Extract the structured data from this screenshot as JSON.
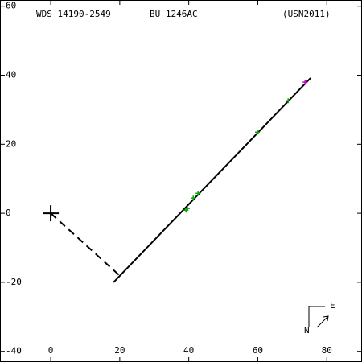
{
  "chart_data": {
    "type": "scatter",
    "title": "WDS 14190-2549",
    "subtitle": "BU 1246AC",
    "annotation": "(USN2011)",
    "compass": {
      "east": "E",
      "north": "N"
    },
    "xlim": [
      -14.7,
      90.2
    ],
    "ylim": [
      -43.1,
      61.8
    ],
    "xticks": [
      0,
      20,
      40,
      60,
      80
    ],
    "yticks": [
      -40,
      -20,
      0,
      20,
      40,
      60
    ],
    "primary": {
      "x": 0,
      "y": 0
    },
    "series": [
      {
        "color": "#00aa00",
        "x": [
          39.2,
          39.6,
          41.3,
          42.7,
          59.9,
          68.8
        ],
        "values": [
          0.9,
          1.4,
          4.4,
          5.8,
          23.5,
          32.6
        ]
      },
      {
        "color": "#cc00cc",
        "x": [
          73.7
        ],
        "values": [
          38
        ]
      }
    ],
    "lines": [
      {
        "dash": false,
        "x": [
          18.2,
          75.3
        ],
        "values": [
          -20,
          39.2
        ]
      },
      {
        "dash": true,
        "x": [
          0,
          19.8
        ],
        "values": [
          0,
          -17.9
        ]
      }
    ]
  }
}
